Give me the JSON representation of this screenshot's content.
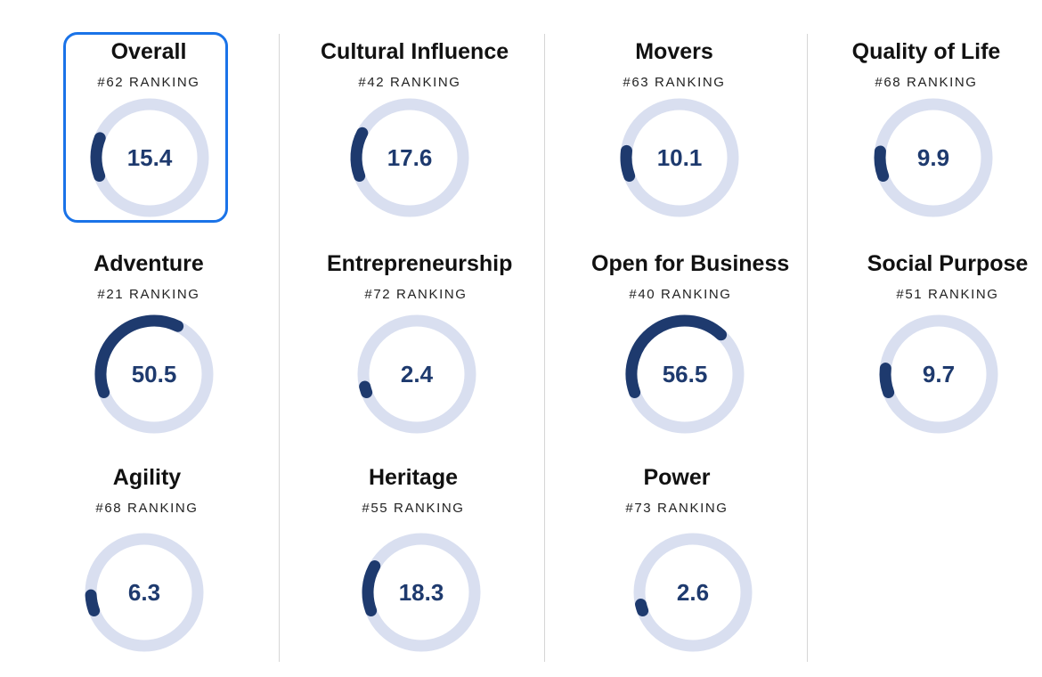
{
  "colors": {
    "ring_track": "#d9dff0",
    "ring_fill": "#1e3a6e",
    "score_text": "#1e3a6e",
    "highlight_border": "#1a73e8"
  },
  "ranking_suffix": "RANKING",
  "max_score": 100,
  "metrics": [
    {
      "id": "overall",
      "title": "Overall",
      "rank": "#62 RANKING",
      "score": 15.4,
      "selected": true
    },
    {
      "id": "cultural-influence",
      "title": "Cultural Influence",
      "rank": "#42 RANKING",
      "score": 17.6
    },
    {
      "id": "movers",
      "title": "Movers",
      "rank": "#63 RANKING",
      "score": 10.1
    },
    {
      "id": "quality-of-life",
      "title": "Quality of Life",
      "rank": "#68 RANKING",
      "score": 9.9
    },
    {
      "id": "adventure",
      "title": "Adventure",
      "rank": "#21 RANKING",
      "score": 50.5
    },
    {
      "id": "entrepreneurship",
      "title": "Entrepreneurship",
      "rank": "#72 RANKING",
      "score": 2.4
    },
    {
      "id": "open-for-business",
      "title": "Open for Business",
      "rank": "#40 RANKING",
      "score": 56.5
    },
    {
      "id": "social-purpose",
      "title": "Social Purpose",
      "rank": "#51 RANKING",
      "score": 9.7
    },
    {
      "id": "agility",
      "title": "Agility",
      "rank": "#68 RANKING",
      "score": 6.3
    },
    {
      "id": "heritage",
      "title": "Heritage",
      "rank": "#55 RANKING",
      "score": 18.3
    },
    {
      "id": "power",
      "title": "Power",
      "rank": "#73 RANKING",
      "score": 2.6
    }
  ]
}
